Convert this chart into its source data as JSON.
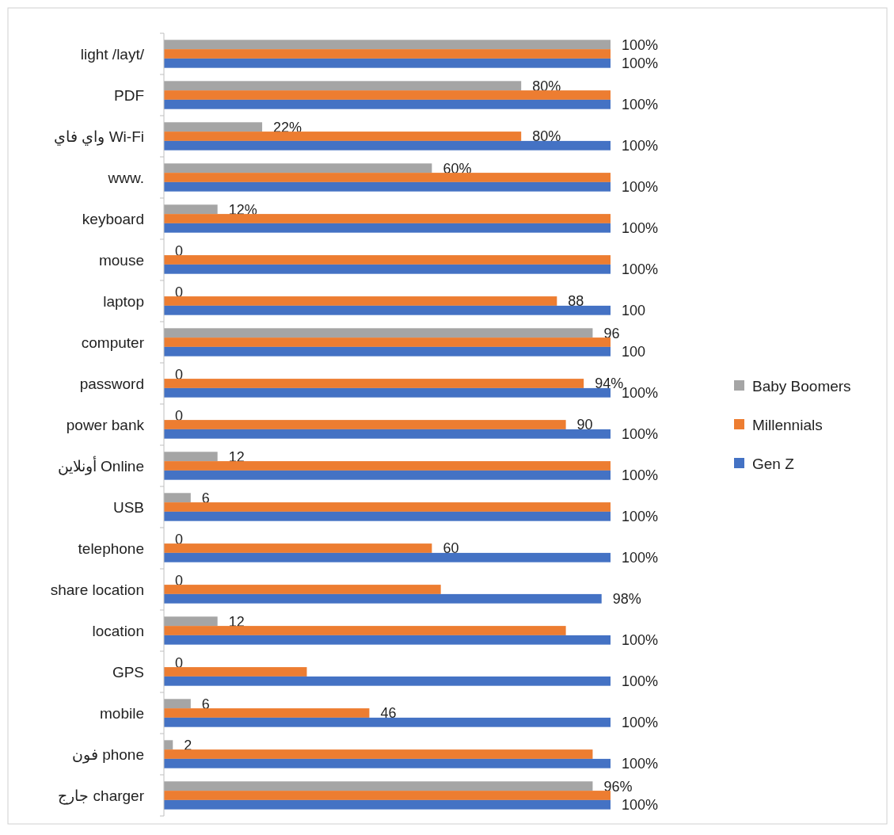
{
  "chart_data": {
    "type": "bar",
    "orientation": "horizontal",
    "legend": "right",
    "xlim": [
      0,
      100
    ],
    "categories": [
      "light /layt/",
      "PDF",
      "واي فاي Wi-Fi",
      "www.",
      "keyboard",
      "mouse",
      "laptop",
      "computer",
      "password",
      "power bank",
      "أونلاين Online",
      "USB",
      "telephone",
      "share location",
      "location",
      "GPS",
      "mobile",
      "فون phone",
      "جارج charger"
    ],
    "series": [
      {
        "name": "Baby Boomers",
        "color": "#a5a5a5",
        "values": [
          100,
          80,
          22,
          60,
          12,
          0,
          0,
          96,
          0,
          0,
          12,
          6,
          0,
          0,
          12,
          0,
          6,
          2,
          96
        ],
        "value_labels": [
          "100%",
          "80%",
          "22%",
          "60%",
          "12%",
          "0",
          "0",
          "96",
          "0",
          "0",
          "12",
          "6",
          "0",
          "0",
          "12",
          "0",
          "6",
          "2",
          "96%"
        ]
      },
      {
        "name": "Millennials",
        "color": "#ed7d31",
        "values": [
          100,
          100,
          80,
          100,
          100,
          100,
          88,
          100,
          94,
          90,
          100,
          100,
          60,
          62,
          90,
          32,
          46,
          96,
          100
        ],
        "value_labels": [
          null,
          null,
          "80%",
          null,
          null,
          null,
          "88",
          null,
          "94%",
          "90",
          null,
          null,
          "60",
          null,
          null,
          null,
          "46",
          null,
          null
        ]
      },
      {
        "name": "Gen Z",
        "color": "#4472c4",
        "values": [
          100,
          100,
          100,
          100,
          100,
          100,
          100,
          100,
          100,
          100,
          100,
          100,
          100,
          98,
          100,
          100,
          100,
          100,
          100
        ],
        "value_labels": [
          "100%",
          "100%",
          "100%",
          "100%",
          "100%",
          "100%",
          "100",
          "100",
          "100%",
          "100%",
          "100%",
          "100%",
          "100%",
          "98%",
          "100%",
          "100%",
          "100%",
          "100%",
          "100%"
        ]
      }
    ]
  }
}
